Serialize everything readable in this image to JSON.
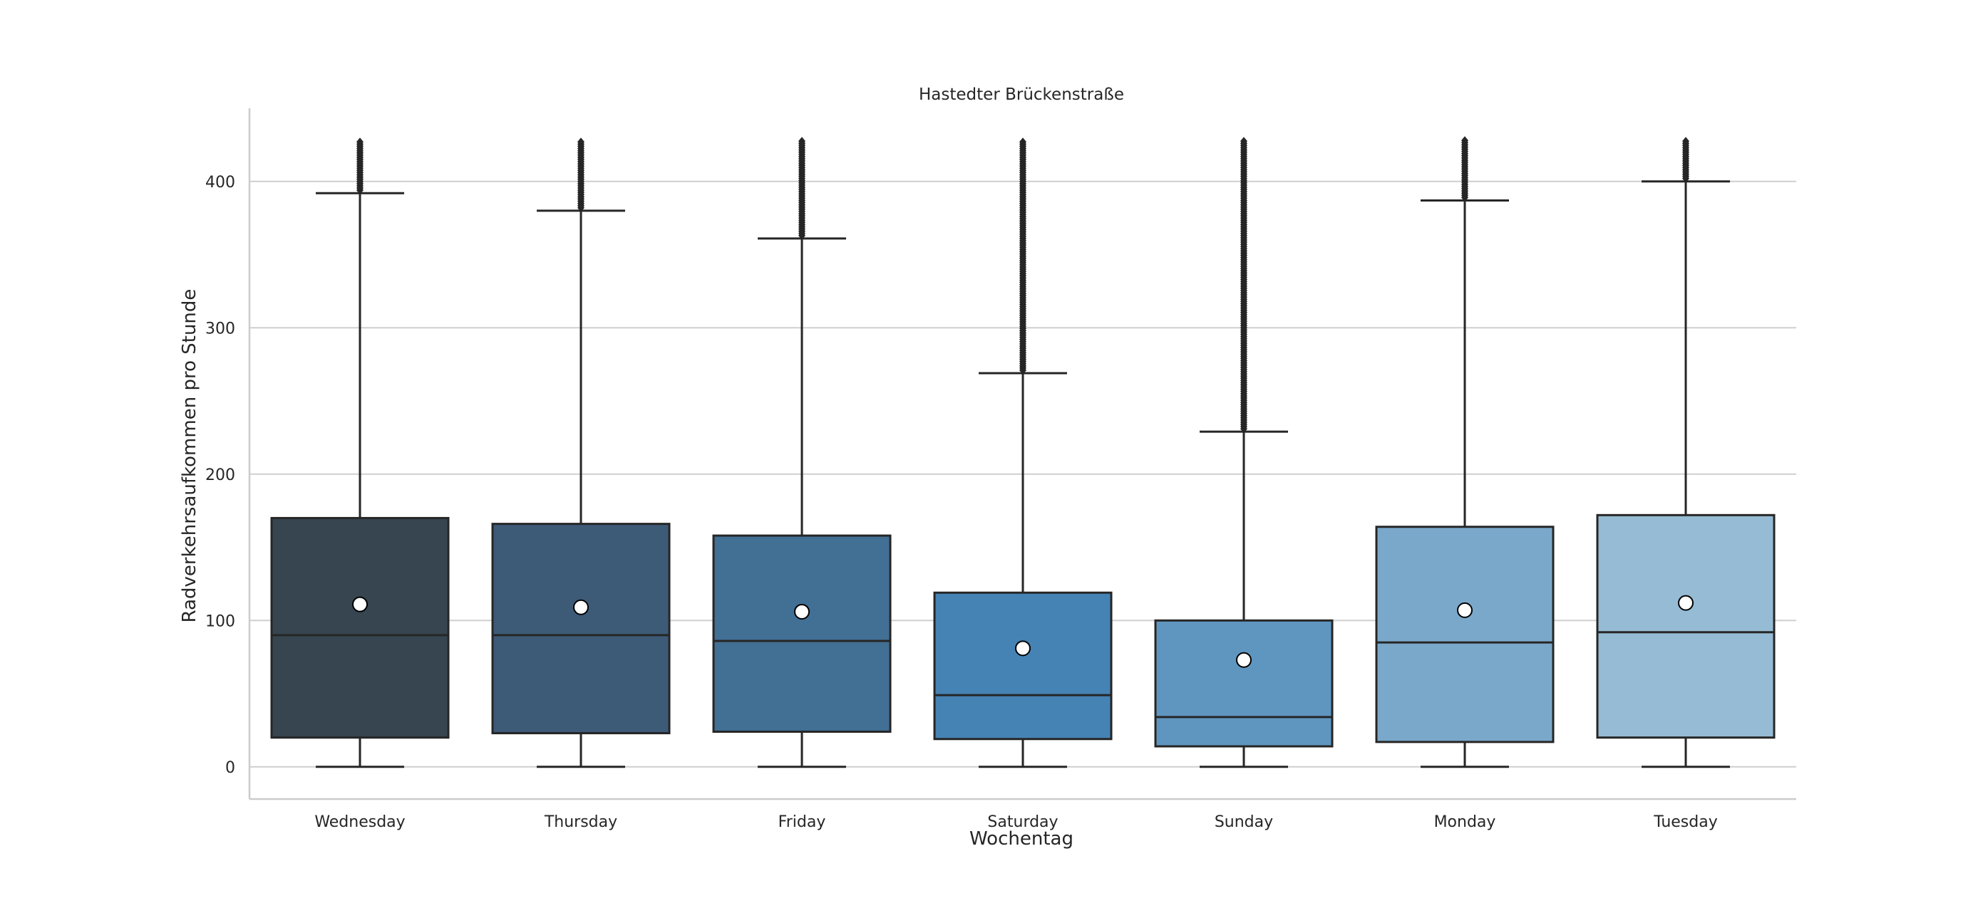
{
  "chart_data": {
    "type": "box",
    "title": "Hastedter Brückenstraße",
    "xlabel": "Wochentag",
    "ylabel": "Radverkehrsaufkommen pro Stunde",
    "ylim": [
      -22,
      450
    ],
    "yticks": [
      0,
      100,
      200,
      300,
      400
    ],
    "grid": "horizontal",
    "categories": [
      "Wednesday",
      "Thursday",
      "Friday",
      "Saturday",
      "Sunday",
      "Monday",
      "Tuesday"
    ],
    "boxes": [
      {
        "category": "Wednesday",
        "color": "#36454f",
        "whisker_low": 0,
        "q1": 20,
        "median": 90,
        "q3": 170,
        "whisker_high": 392,
        "mean": 111,
        "outliers_from": 394,
        "outliers_to": 428
      },
      {
        "category": "Thursday",
        "color": "#3d5b77",
        "whisker_low": 0,
        "q1": 23,
        "median": 90,
        "q3": 166,
        "whisker_high": 380,
        "mean": 109,
        "outliers_from": 382,
        "outliers_to": 428
      },
      {
        "category": "Friday",
        "color": "#426f94",
        "whisker_low": 0,
        "q1": 24,
        "median": 86,
        "q3": 158,
        "whisker_high": 361,
        "mean": 106,
        "outliers_from": 363,
        "outliers_to": 428
      },
      {
        "category": "Saturday",
        "color": "#4683b5",
        "whisker_low": 0,
        "q1": 19,
        "median": 49,
        "q3": 119,
        "whisker_high": 269,
        "mean": 81,
        "outliers_from": 271,
        "outliers_to": 428
      },
      {
        "category": "Sunday",
        "color": "#5f96c0",
        "whisker_low": 0,
        "q1": 14,
        "median": 34,
        "q3": 100,
        "whisker_high": 229,
        "mean": 73,
        "outliers_from": 231,
        "outliers_to": 428
      },
      {
        "category": "Monday",
        "color": "#7aa8ca",
        "whisker_low": 0,
        "q1": 17,
        "median": 85,
        "q3": 164,
        "whisker_high": 387,
        "mean": 107,
        "outliers_from": 389,
        "outliers_to": 428
      },
      {
        "category": "Tuesday",
        "color": "#96bbd4",
        "whisker_low": 0,
        "q1": 20,
        "median": 92,
        "q3": 172,
        "whisker_high": 400,
        "mean": 112,
        "outliers_from": 402,
        "outliers_to": 428
      }
    ]
  }
}
